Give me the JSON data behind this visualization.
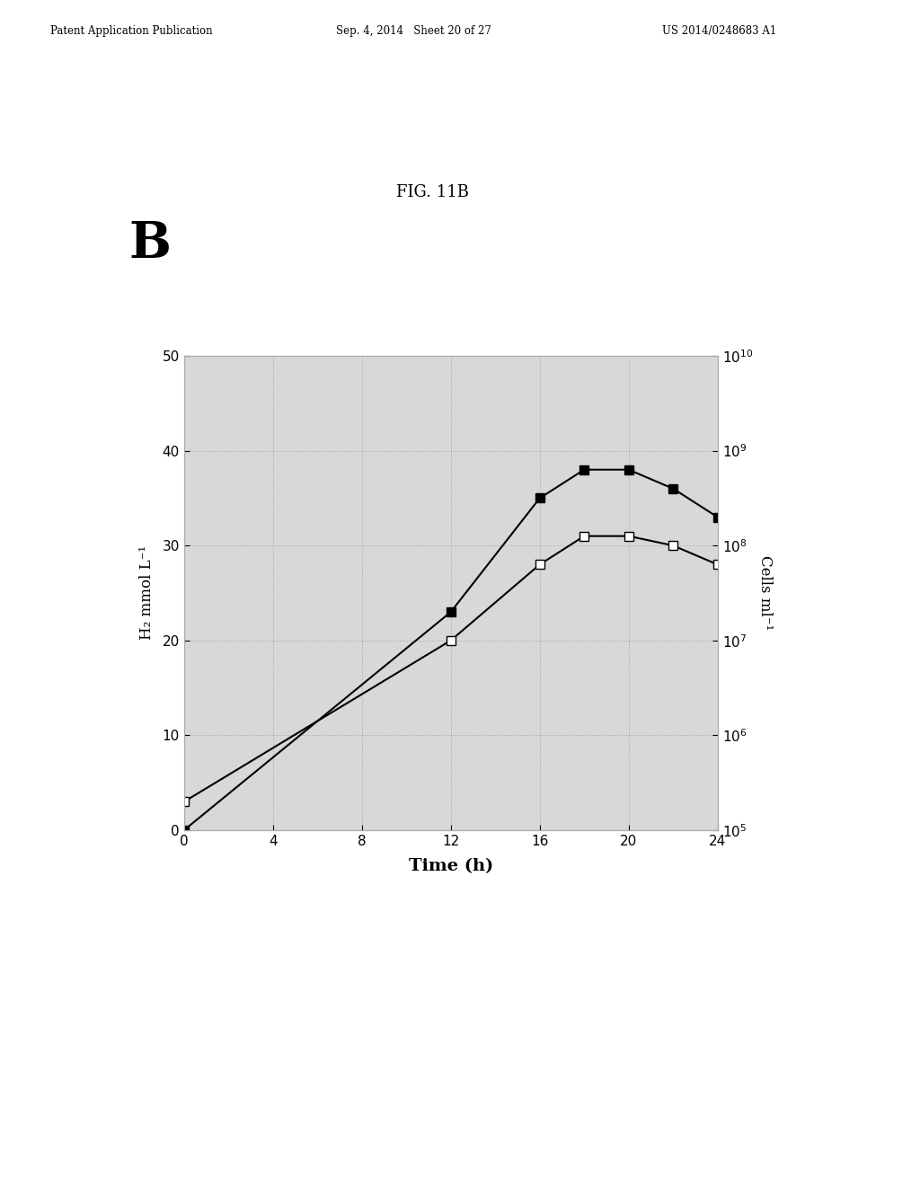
{
  "title": "FIG. 11B",
  "panel_label": "B",
  "header_left": "Patent Application Publication",
  "header_center": "Sep. 4, 2014   Sheet 20 of 27",
  "header_right": "US 2014/0248683 A1",
  "xlabel": "Time (h)",
  "ylabel_left": "H₂ mmol L⁻¹",
  "ylabel_right": "Cells ml⁻¹",
  "x_ticks": [
    0,
    4,
    8,
    12,
    16,
    20,
    24
  ],
  "ylim_left": [
    0,
    50
  ],
  "solid_squares_x": [
    0,
    12,
    16,
    18,
    20,
    22,
    24
  ],
  "solid_squares_y": [
    0,
    23,
    35,
    38,
    38,
    36,
    33
  ],
  "open_squares_x": [
    0,
    12,
    16,
    18,
    20,
    22,
    24
  ],
  "open_squares_y": [
    3,
    20,
    28,
    31,
    31,
    30,
    28
  ],
  "line_color": "#000000",
  "background_color": "#ffffff",
  "plot_bg_color": "#d8d8d8"
}
